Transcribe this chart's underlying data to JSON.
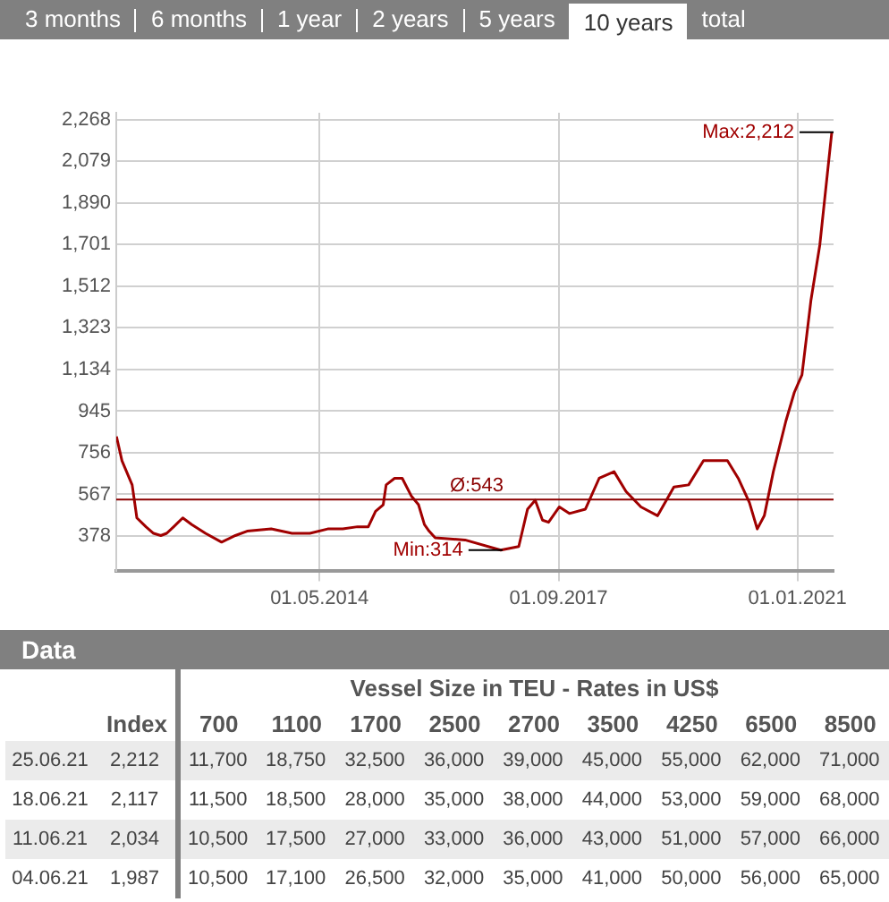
{
  "chart_data": [
    {
      "type": "line",
      "annotations": [
        "3 months",
        "6 months",
        "1 year",
        "2 years",
        "5 years",
        "10 years",
        "total",
        {
          "text": "Min:314",
          "x": "2016-11-10",
          "y": 314
        },
        {
          "text": "Max:2,212",
          "x": "2021-06-25",
          "y": 2212
        }
      ],
      "x": [
        "2011-07-01",
        "2011-07-29",
        "2011-09-19",
        "2011-10-13",
        "2011-11-28",
        "2012-01-06",
        "2012-02-12",
        "2012-03-13",
        "2012-04-18",
        "2012-06-03",
        "2012-07-19",
        "2012-09-27",
        "2012-12-18",
        "2013-02-26",
        "2013-04-27",
        "2013-08-28",
        "2013-12-12",
        "2014-03-13",
        "2014-06-12",
        "2014-08-28",
        "2014-11-11",
        "2015-01-05",
        "2015-02-11",
        "2015-03-22",
        "2015-04-06",
        "2015-05-19",
        "2015-06-27",
        "2015-08-12",
        "2015-09-18",
        "2015-10-18",
        "2015-11-11",
        "2015-12-12",
        "2016-05-12",
        "2016-11-10",
        "2017-02-10",
        "2017-03-27",
        "2017-05-05",
        "2017-06-11",
        "2017-07-12",
        "2017-09-05",
        "2017-10-26",
        "2018-01-16",
        "2018-03-27",
        "2018-06-11",
        "2018-08-11",
        "2018-10-26",
        "2019-01-19",
        "2019-04-12",
        "2019-06-26",
        "2019-09-10",
        "2020-01-10",
        "2020-03-05",
        "2020-05-01",
        "2020-06-10",
        "2020-07-16",
        "2020-08-31",
        "2020-11-03",
        "2020-12-16",
        "2021-01-24",
        "2021-03-11",
        "2021-04-25",
        "2021-05-26",
        "2021-06-25"
      ],
      "series": [
        {
          "color": "#a00000",
          "values": [
            830,
            720,
            610,
            460,
            420,
            390,
            380,
            390,
            420,
            460,
            430,
            390,
            350,
            380,
            400,
            410,
            390,
            390,
            410,
            410,
            420,
            420,
            490,
            520,
            610,
            640,
            640,
            560,
            520,
            430,
            400,
            370,
            360,
            314,
            330,
            500,
            540,
            450,
            440,
            510,
            480,
            500,
            640,
            670,
            580,
            510,
            470,
            600,
            610,
            720,
            720,
            640,
            530,
            410,
            470,
            670,
            900,
            1030,
            1110,
            1450,
            1700,
            1960,
            2212
          ]
        }
      ],
      "xlim": [
        "2011-06-30",
        "2021-07-04"
      ],
      "xticks": [
        {
          "value": "2014-05-01",
          "label": "01.05.2014"
        },
        {
          "value": "2017-09-01",
          "label": "01.09.2017"
        },
        {
          "value": "2021-01-01",
          "label": "01.01.2021"
        }
      ],
      "ylim": [
        221,
        2300
      ],
      "yticks": [
        378,
        567,
        756,
        945,
        {
          "value": 1134,
          "label": "1,134"
        },
        {
          "value": 1323,
          "label": "1,323"
        },
        {
          "value": 1512,
          "label": "1,512"
        },
        {
          "value": 1701,
          "label": "1,701"
        },
        {
          "value": 1890,
          "label": "1,890"
        },
        {
          "value": 2079,
          "label": "2,079"
        },
        {
          "value": 2268,
          "label": "2,268"
        }
      ],
      "ref_lines": [
        {
          "axis": "y",
          "value": 543,
          "label": "Ø:543",
          "color": "#8b0000"
        }
      ],
      "grid": true,
      "legend": false,
      "marker": "none",
      "line_style": "solid"
    },
    {
      "type": "other",
      "title": "Data",
      "subtitle": "Vessel Size in TEU - Rates in US$",
      "categories": [
        "Index",
        "700",
        "1100",
        "1700",
        "2500",
        "2700",
        "3500",
        "4250",
        "6500",
        "8500"
      ],
      "y_categories": [
        "25.06.21",
        "18.06.21",
        "11.06.21",
        "04.06.21"
      ],
      "cell_labels": [
        [
          "2,212",
          "11,700",
          "18,750",
          "32,500",
          "36,000",
          "39,000",
          "45,000",
          "55,000",
          "62,000",
          "71,000"
        ],
        [
          "2,117",
          "11,500",
          "18,500",
          "28,000",
          "35,000",
          "38,000",
          "44,000",
          "53,000",
          "59,000",
          "68,000"
        ],
        [
          "2,034",
          "10,500",
          "17,500",
          "27,000",
          "33,000",
          "36,000",
          "43,000",
          "51,000",
          "57,000",
          "66,000"
        ],
        [
          "1,987",
          "10,500",
          "17,100",
          "26,500",
          "32,000",
          "35,000",
          "41,000",
          "50,000",
          "56,000",
          "65,000"
        ]
      ]
    }
  ]
}
